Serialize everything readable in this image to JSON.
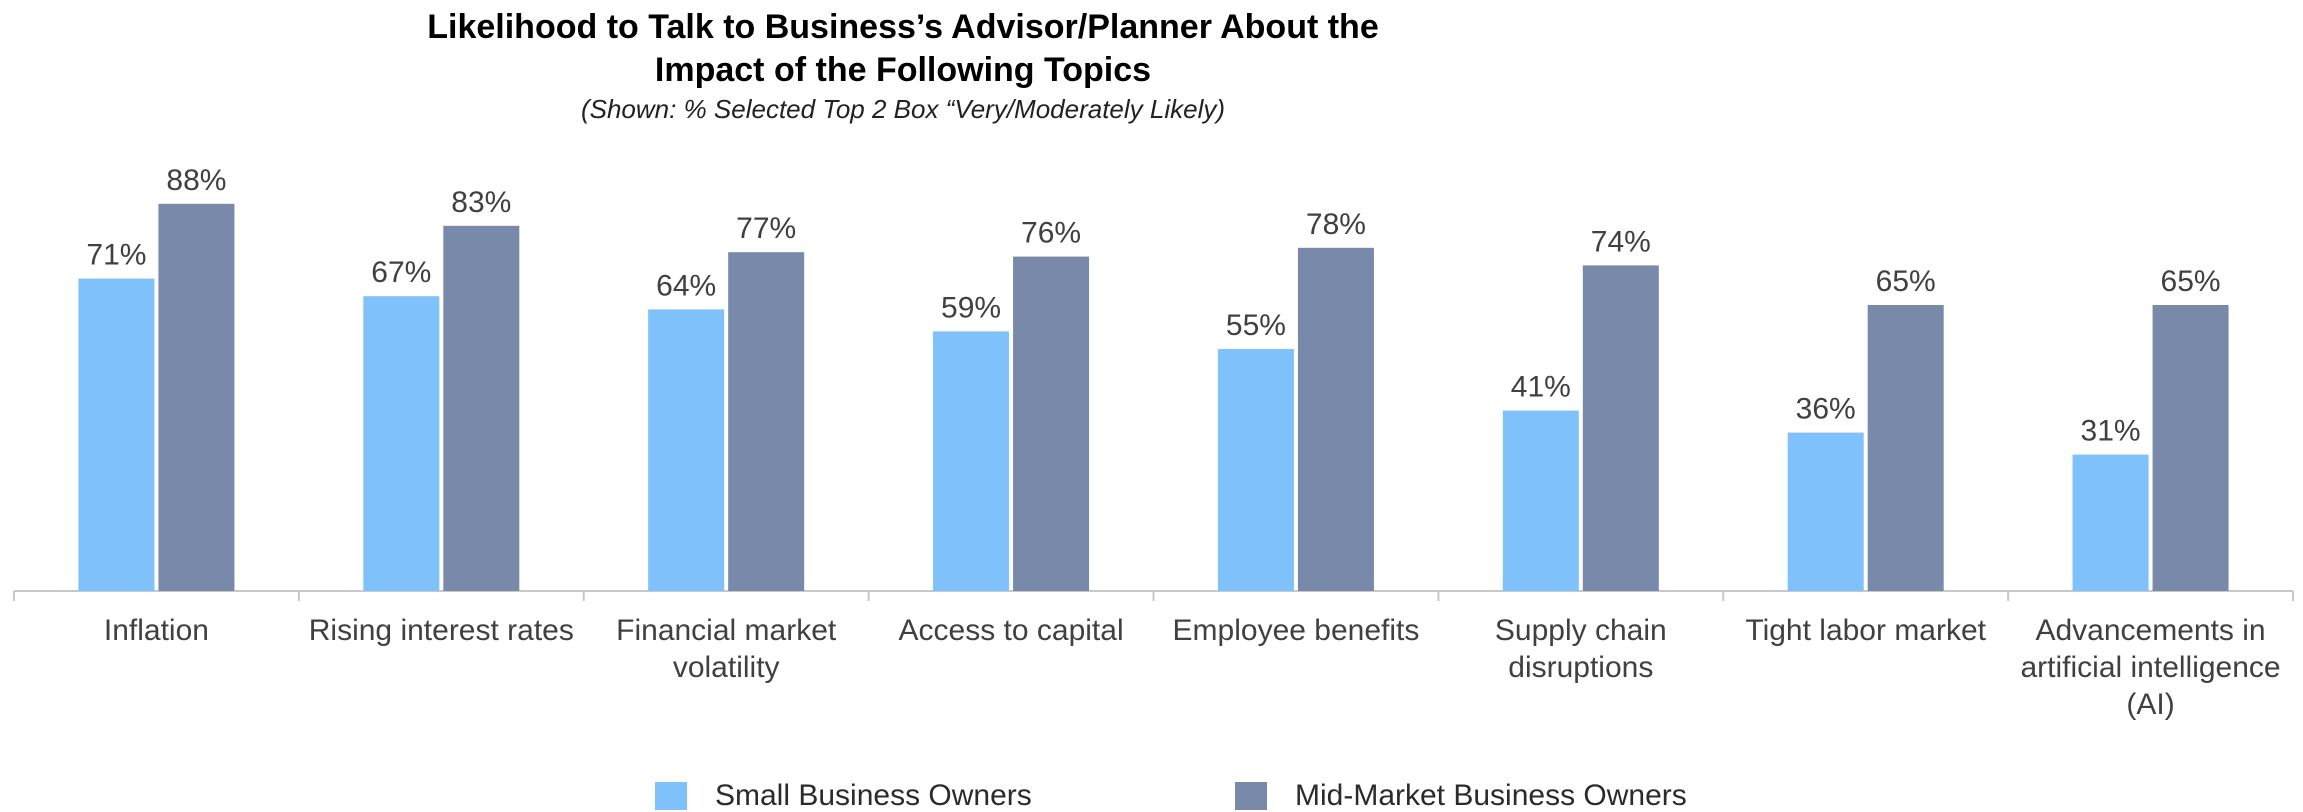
{
  "chart_data": {
    "type": "bar",
    "title_lines": [
      "Likelihood to Talk to Business’s Advisor/Planner About the",
      "Impact of the Following Topics"
    ],
    "subtitle": "(Shown: % Selected Top 2 Box “Very/Moderately Likely)",
    "categories": [
      [
        "Inflation"
      ],
      [
        "Rising interest rates"
      ],
      [
        "Financial market",
        "volatility"
      ],
      [
        "Access to capital"
      ],
      [
        "Employee benefits"
      ],
      [
        "Supply chain",
        "disruptions"
      ],
      [
        "Tight labor market"
      ],
      [
        "Advancements in",
        "artificial intelligence",
        "(AI)"
      ]
    ],
    "series": [
      {
        "name": "Small Business Owners",
        "color": "#7fc1fb",
        "values": [
          71,
          67,
          64,
          59,
          55,
          41,
          36,
          31
        ]
      },
      {
        "name": "Mid-Market Business Owners",
        "color": "#7889a9",
        "values": [
          88,
          83,
          77,
          76,
          78,
          74,
          65,
          65
        ]
      }
    ],
    "value_suffix": "%",
    "ylim": [
      0,
      100
    ],
    "grid": false,
    "legend_position": "bottom"
  }
}
